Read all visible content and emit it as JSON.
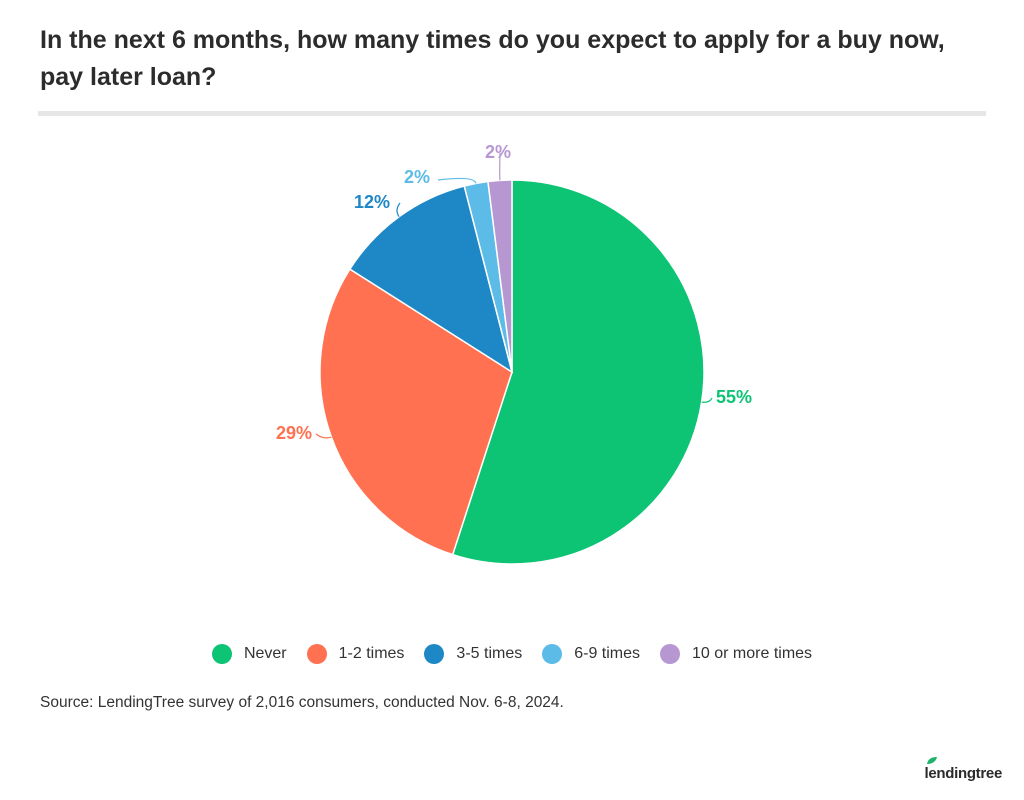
{
  "title": "In the next 6 months, how many times do you expect to apply for a buy now, pay later loan?",
  "source": "Source: LendingTree survey of 2,016 consumers, conducted Nov. 6-8, 2024.",
  "brand": "lendingtree",
  "brand_icon": "leaf-icon",
  "chart_data": {
    "type": "pie",
    "title": "In the next 6 months, how many times do you expect to apply for a buy now, pay later loan?",
    "legend_position": "bottom",
    "slices": [
      {
        "label": "Never",
        "value": 55,
        "display": "55%",
        "color": "#0dc374"
      },
      {
        "label": "1-2 times",
        "value": 29,
        "display": "29%",
        "color": "#ff7150"
      },
      {
        "label": "3-5 times",
        "value": 12,
        "display": "12%",
        "color": "#1e88c7"
      },
      {
        "label": "6-9 times",
        "value": 2,
        "display": "2%",
        "color": "#5dbbe8"
      },
      {
        "label": "10 or more times",
        "value": 2,
        "display": "2%",
        "color": "#b797d2"
      }
    ]
  }
}
